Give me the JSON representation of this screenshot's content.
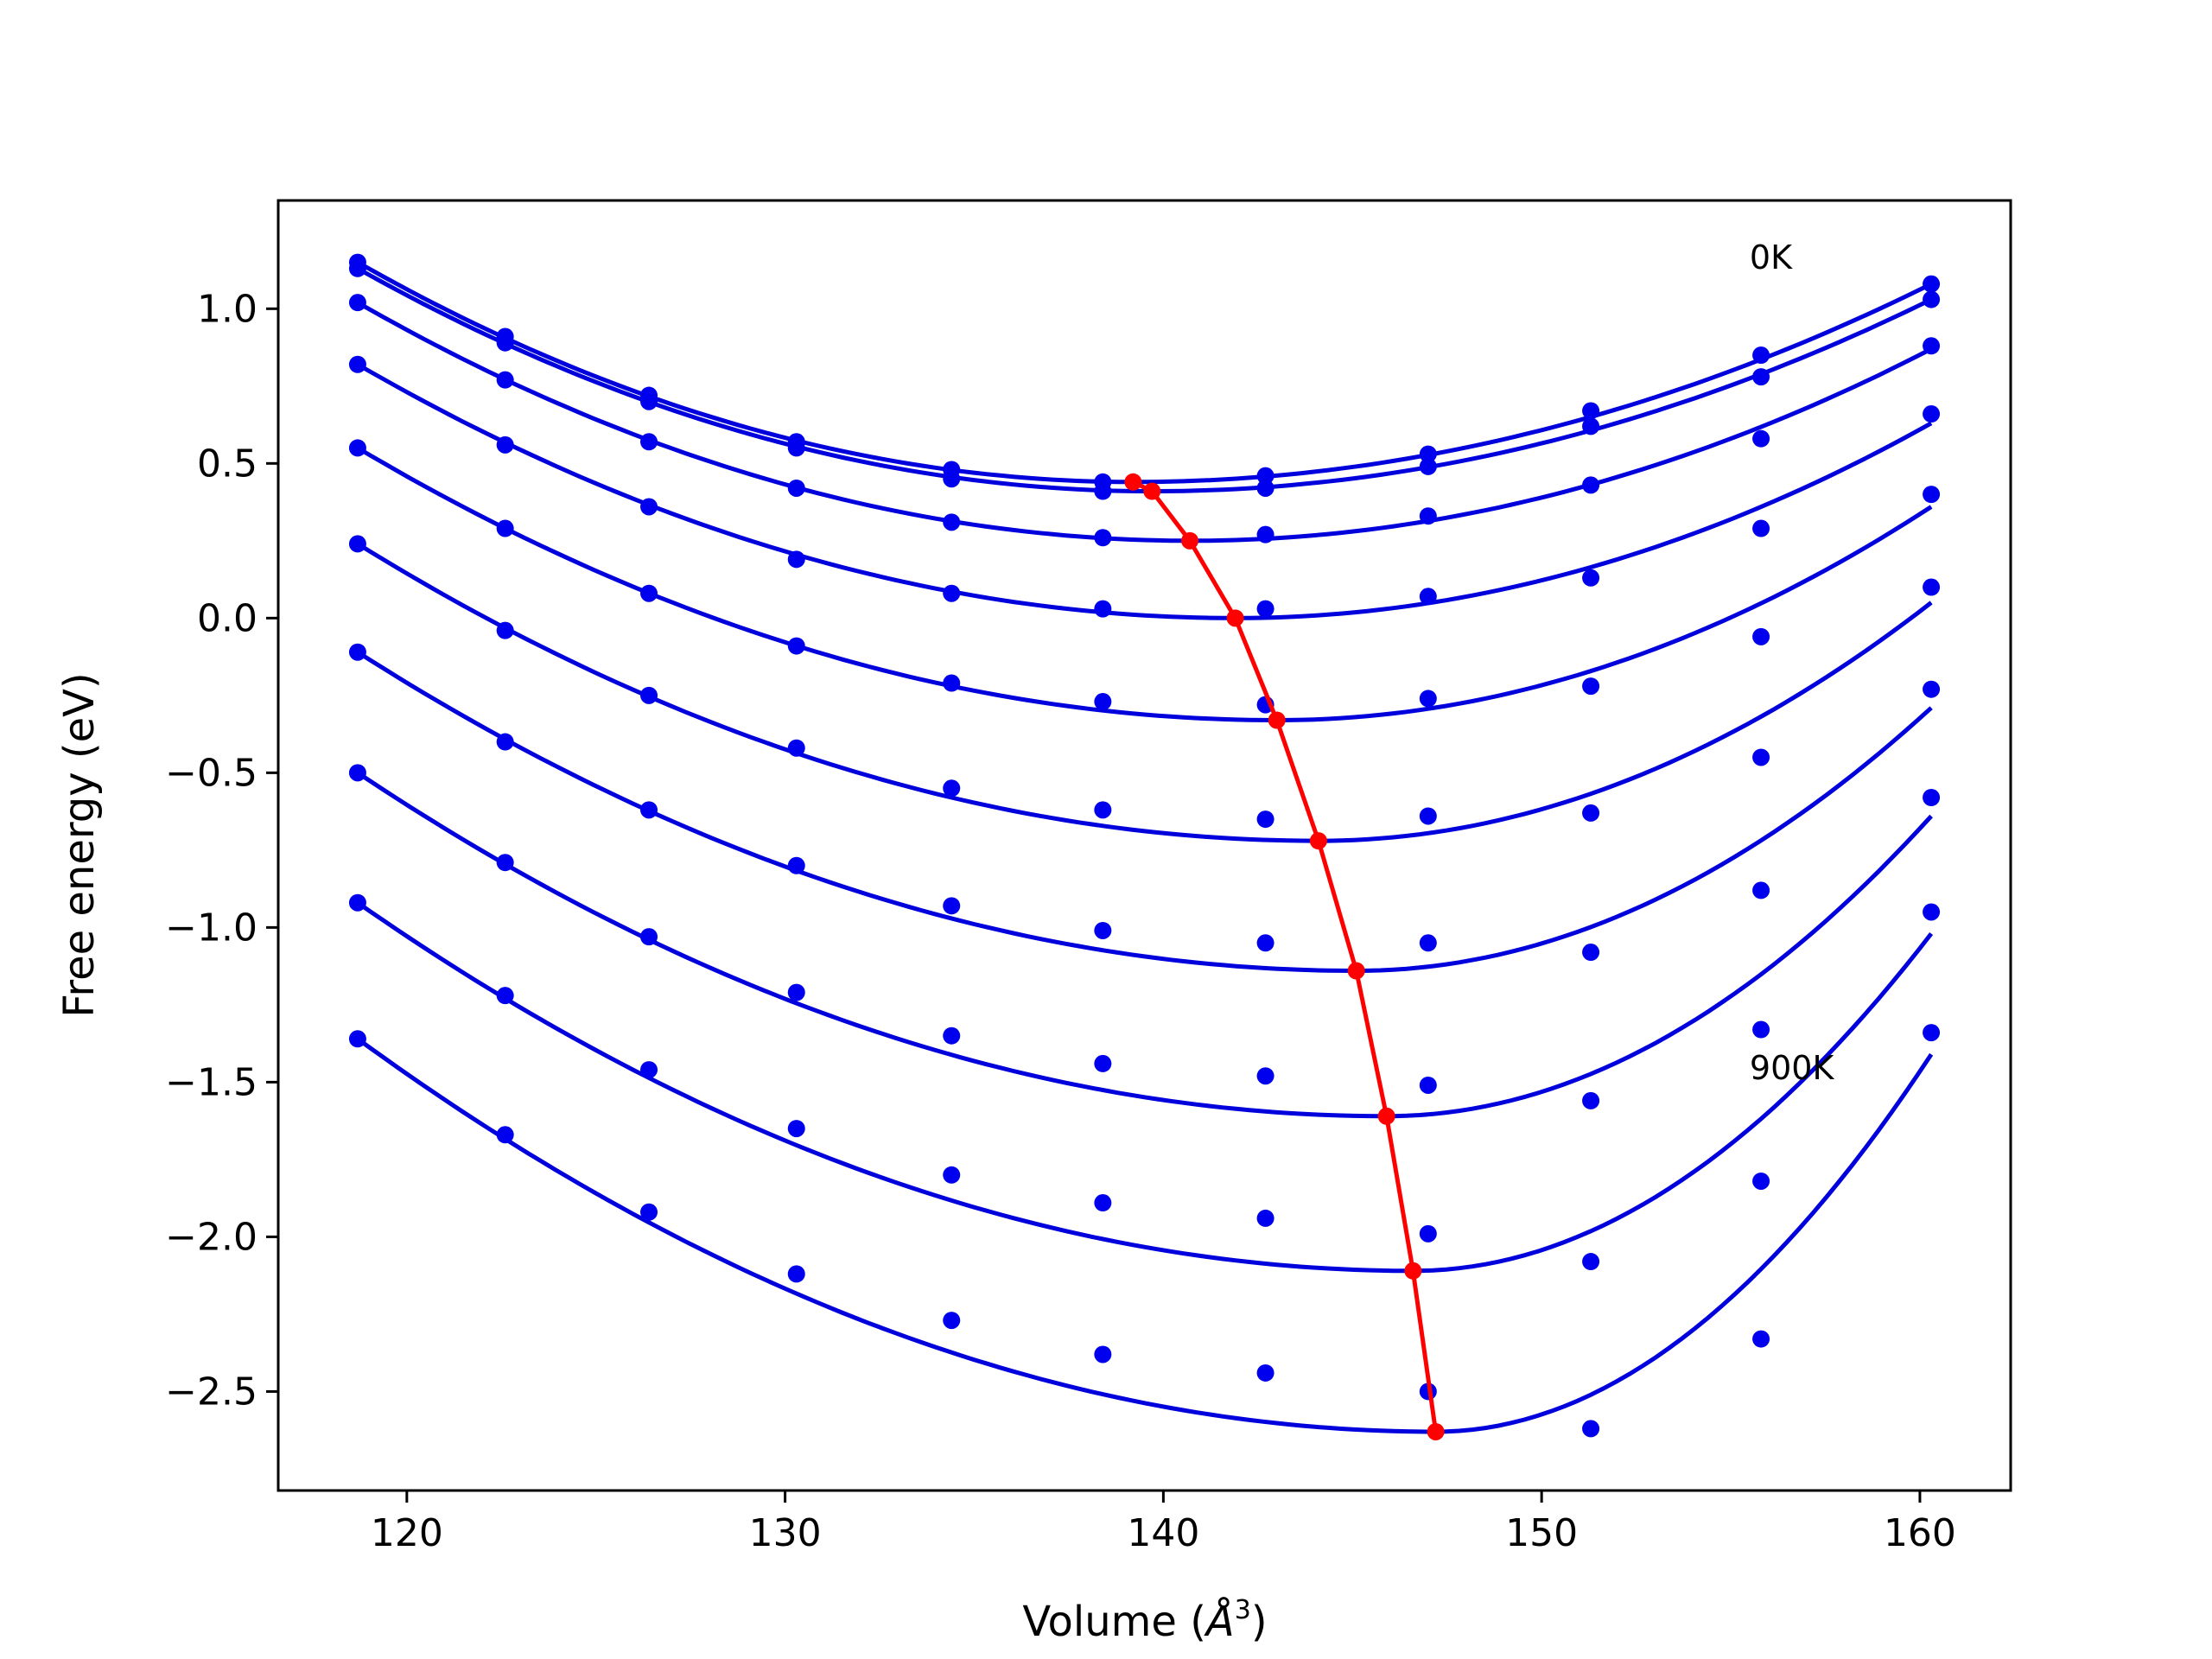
{
  "chart_data": {
    "type": "scatter",
    "xlabel_prefix": "Volume (",
    "xlabel_unit": "Å",
    "xlabel_exp": "3",
    "xlabel_suffix": ")",
    "ylabel": "Free energy (eV)",
    "xlim": [
      116.6,
      162.4
    ],
    "ylim": [
      -2.82,
      1.35
    ],
    "xticks": [
      120,
      130,
      140,
      150,
      160
    ],
    "xtick_labels": [
      "120",
      "130",
      "140",
      "150",
      "160"
    ],
    "yticks": [
      1.0,
      0.5,
      0.0,
      -0.5,
      -1.0,
      -1.5,
      -2.0,
      -2.5
    ],
    "ytick_labels": [
      "1.0",
      "0.5",
      "0.0",
      "−0.5",
      "−1.0",
      "−1.5",
      "−2.0",
      "−2.5"
    ],
    "grid": false,
    "legend": "none",
    "annotations": [
      {
        "text": "0K",
        "x": 155.5,
        "y": 1.13
      },
      {
        "text": "900K",
        "x": 155.5,
        "y": -1.49
      }
    ],
    "colors": {
      "points": "#0000ee",
      "fits": "#0000dd",
      "minima": "#ff0000"
    },
    "volumes": [
      118.7,
      122.6,
      126.4,
      130.3,
      134.4,
      138.4,
      142.7,
      147.0,
      151.3,
      155.8,
      160.3
    ],
    "series": [
      {
        "points": [
          1.15,
          0.91,
          0.72,
          0.57,
          0.48,
          0.44,
          0.46,
          0.53,
          0.67,
          0.85,
          1.08
        ],
        "min": [
          139.2,
          0.44
        ],
        "curve_end": 1.08
      },
      {
        "points": [
          1.13,
          0.89,
          0.7,
          0.55,
          0.45,
          0.41,
          0.42,
          0.49,
          0.62,
          0.78,
          1.03
        ],
        "min": [
          139.7,
          0.41
        ],
        "curve_end": 1.03
      },
      {
        "points": [
          1.02,
          0.77,
          0.57,
          0.42,
          0.31,
          0.26,
          0.27,
          0.33,
          0.43,
          0.58,
          0.88
        ],
        "min": [
          140.7,
          0.25
        ],
        "curve_end": 0.87
      },
      {
        "points": [
          0.82,
          0.56,
          0.36,
          0.19,
          0.08,
          0.03,
          0.03,
          0.07,
          0.13,
          0.29,
          0.66
        ],
        "min": [
          141.9,
          0.0
        ],
        "curve_end": 0.63
      },
      {
        "points": [
          0.55,
          0.29,
          0.08,
          -0.09,
          -0.21,
          -0.27,
          -0.28,
          -0.26,
          -0.22,
          -0.06,
          0.4
        ],
        "min": [
          143.0,
          -0.33
        ],
        "curve_end": 0.36
      },
      {
        "points": [
          0.24,
          -0.04,
          -0.25,
          -0.42,
          -0.55,
          -0.62,
          -0.65,
          -0.64,
          -0.63,
          -0.45,
          0.1
        ],
        "min": [
          144.1,
          -0.72
        ],
        "curve_end": 0.05
      },
      {
        "points": [
          -0.11,
          -0.4,
          -0.62,
          -0.8,
          -0.93,
          -1.01,
          -1.05,
          -1.05,
          -1.08,
          -0.88,
          -0.23
        ],
        "min": [
          145.1,
          -1.14
        ],
        "curve_end": -0.29
      },
      {
        "points": [
          -0.5,
          -0.79,
          -1.03,
          -1.21,
          -1.35,
          -1.44,
          -1.48,
          -1.51,
          -1.56,
          -1.33,
          -0.58
        ],
        "min": [
          145.9,
          -1.61
        ],
        "curve_end": -0.64
      },
      {
        "points": [
          -0.92,
          -1.22,
          -1.46,
          -1.65,
          -1.8,
          -1.89,
          -1.94,
          -1.99,
          -2.08,
          -1.82,
          -0.95
        ],
        "min": [
          146.6,
          -2.11
        ],
        "curve_end": -1.02
      },
      {
        "points": [
          -1.36,
          -1.67,
          -1.92,
          -2.12,
          -2.27,
          -2.38,
          -2.44,
          -2.5,
          -2.62,
          -2.33,
          -1.34
        ],
        "min": [
          147.2,
          -2.63
        ],
        "curve_end": -1.41
      }
    ]
  }
}
